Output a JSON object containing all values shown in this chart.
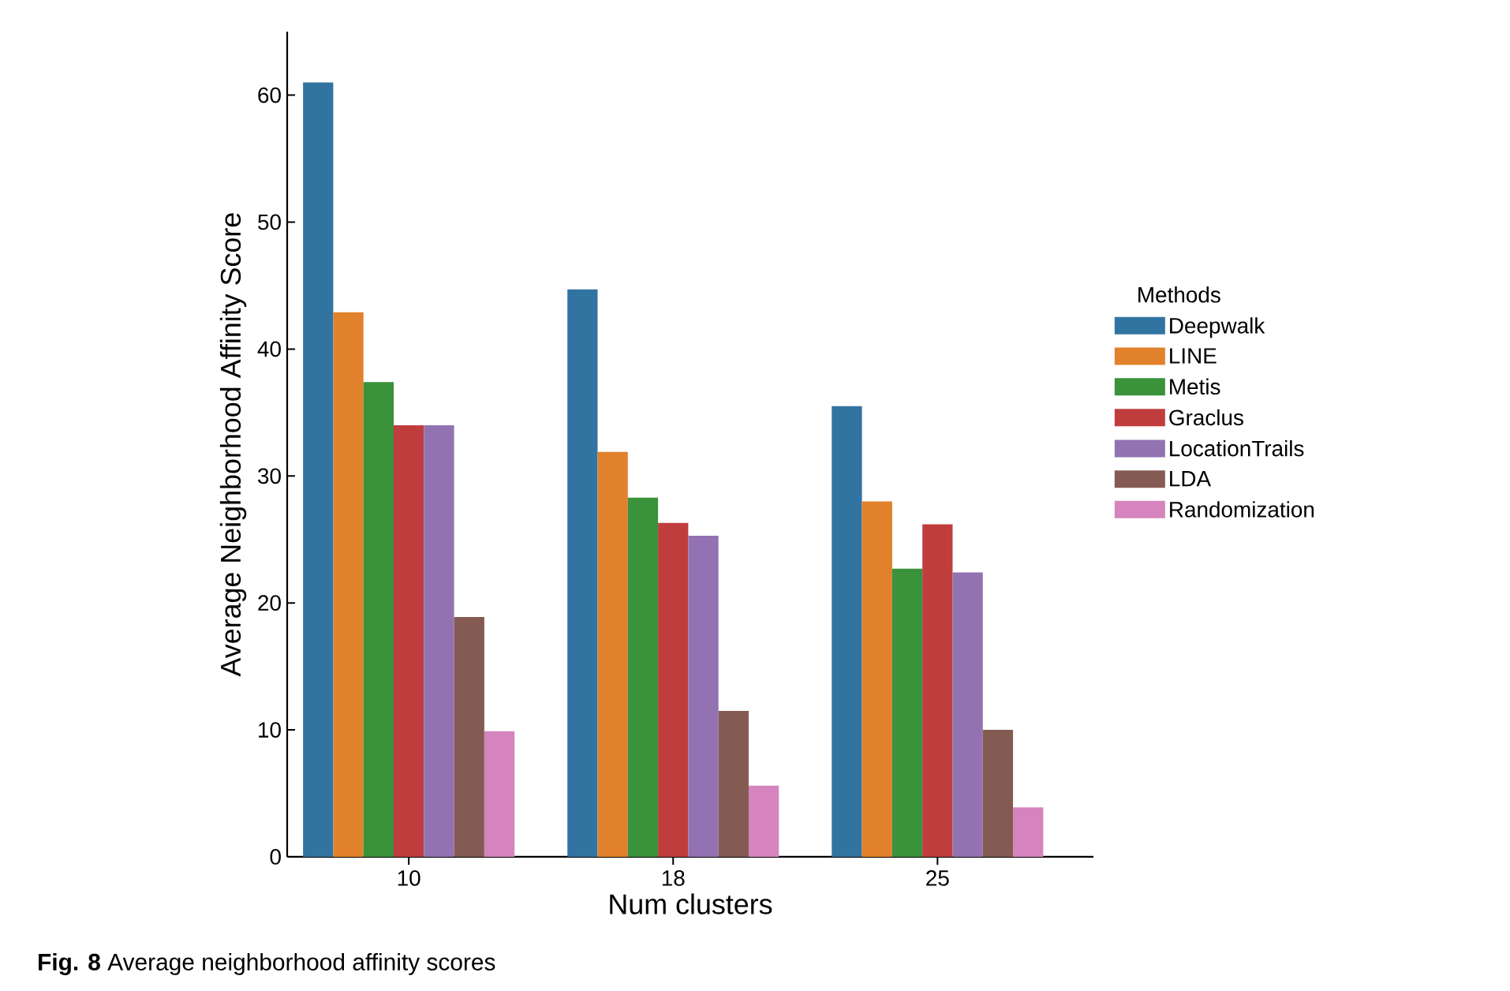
{
  "chart_data": {
    "type": "bar",
    "xlabel": "Num clusters",
    "ylabel": "Average Neighborhood Affinity Score",
    "legend_title": "Methods",
    "annotations": [
      "**Fig. 8** Average neighborhood affinity scores"
    ],
    "categories": [
      "10",
      "18",
      "25"
    ],
    "series": [
      {
        "name": "Deepwalk",
        "color": "#3274a1",
        "values": [
          61.0,
          44.7,
          35.5
        ]
      },
      {
        "name": "LINE",
        "color": "#e1812c",
        "values": [
          42.9,
          31.9,
          28.0
        ]
      },
      {
        "name": "Metis",
        "color": "#3a923a",
        "values": [
          37.4,
          28.3,
          22.7
        ]
      },
      {
        "name": "Graclus",
        "color": "#c03d3e",
        "values": [
          34.0,
          26.3,
          26.2
        ]
      },
      {
        "name": "LocationTrails",
        "color": "#9372b2",
        "values": [
          34.0,
          25.3,
          22.4
        ]
      },
      {
        "name": "LDA",
        "color": "#845b53",
        "values": [
          18.9,
          11.5,
          10.0
        ]
      },
      {
        "name": "Randomization",
        "color": "#d684bd",
        "values": [
          9.9,
          5.6,
          3.9
        ]
      }
    ],
    "ylim": [
      0,
      65
    ],
    "yticks": [
      0,
      10,
      20,
      30,
      40,
      50,
      60
    ],
    "legend": "right"
  }
}
